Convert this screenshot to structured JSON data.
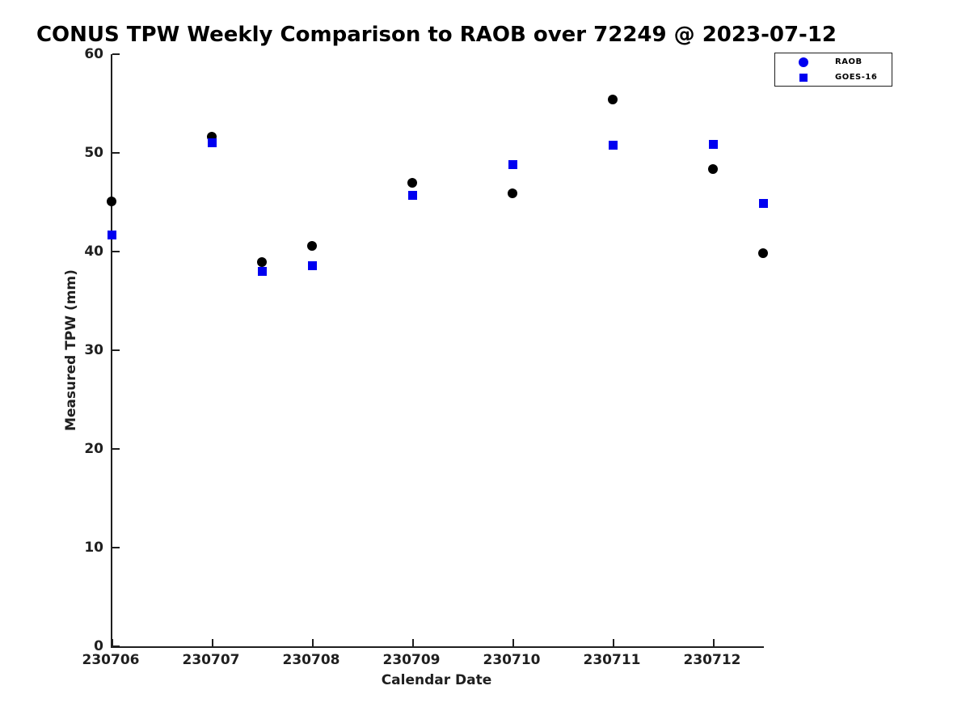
{
  "chart_data": {
    "type": "scatter",
    "title": "CONUS TPW Weekly Comparison to RAOB over 72249 @ 2023-07-12",
    "xlabel": "Calendar Date",
    "ylabel": "Measured TPW (mm)",
    "xlim": [
      230706,
      230712.5
    ],
    "ylim": [
      0,
      60
    ],
    "grid": false,
    "axis_color": "#1f1f1f",
    "y_ticks": [
      0,
      10,
      20,
      30,
      40,
      50,
      60
    ],
    "x_ticks": [
      {
        "value": 230706,
        "label": "230706"
      },
      {
        "value": 230707,
        "label": "230707"
      },
      {
        "value": 230708,
        "label": "230708"
      },
      {
        "value": 230709,
        "label": "230709"
      },
      {
        "value": 230710,
        "label": "230710"
      },
      {
        "value": 230711,
        "label": "230711"
      },
      {
        "value": 230712,
        "label": "230712"
      }
    ],
    "legend": {
      "position": "top-right",
      "entries": [
        {
          "label": "RAOB",
          "marker": "circle",
          "color": "#0000F0"
        },
        {
          "label": "GOES-16",
          "marker": "square",
          "color": "#0000F0"
        }
      ]
    },
    "series": [
      {
        "name": "RAOB",
        "marker": "circle",
        "color": "#000000",
        "points": [
          [
            230706,
            45.1
          ],
          [
            230707,
            51.6
          ],
          [
            230707.5,
            38.9
          ],
          [
            230708,
            40.6
          ],
          [
            230709,
            47.0
          ],
          [
            230710,
            45.9
          ],
          [
            230711,
            55.4
          ],
          [
            230712,
            48.4
          ],
          [
            230712.5,
            39.8
          ]
        ]
      },
      {
        "name": "GOES-16",
        "marker": "square",
        "color": "#0000F0",
        "points": [
          [
            230706,
            41.7
          ],
          [
            230707,
            51.0
          ],
          [
            230707.5,
            38.0
          ],
          [
            230708,
            38.6
          ],
          [
            230709,
            45.7
          ],
          [
            230710,
            48.8
          ],
          [
            230711,
            50.8
          ],
          [
            230712,
            50.9
          ],
          [
            230712.5,
            44.9
          ]
        ]
      }
    ]
  }
}
